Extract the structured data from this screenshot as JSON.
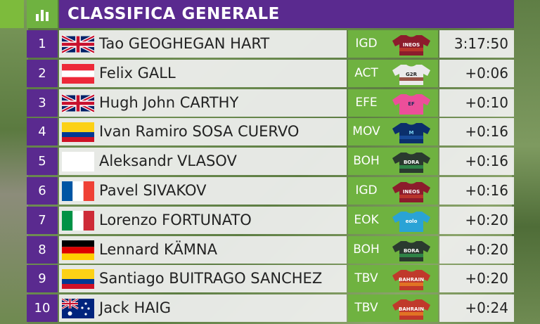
{
  "header": {
    "title": "CLASSIFICA GENERALE",
    "icon": "bar-chart-icon"
  },
  "colors": {
    "purple": "#5a2a8f",
    "green": "#6fb240"
  },
  "rows": [
    {
      "pos": "1",
      "name": "Tao GEOGHEGAN HART",
      "team": "IGD",
      "time": "3:17:50",
      "flag": "gb",
      "jersey": "ineos"
    },
    {
      "pos": "2",
      "name": "Felix GALL",
      "team": "ACT",
      "time": "+0:06",
      "flag": "at",
      "jersey": "ag2r"
    },
    {
      "pos": "3",
      "name": "Hugh John CARTHY",
      "team": "EFE",
      "time": "+0:10",
      "flag": "gb",
      "jersey": "ef"
    },
    {
      "pos": "4",
      "name": "Ivan Ramiro SOSA CUERVO",
      "team": "MOV",
      "time": "+0:16",
      "flag": "co",
      "jersey": "movistar"
    },
    {
      "pos": "5",
      "name": "Aleksandr VLASOV",
      "team": "BOH",
      "time": "+0:16",
      "flag": "blank",
      "jersey": "bora"
    },
    {
      "pos": "6",
      "name": "Pavel SIVAKOV",
      "team": "IGD",
      "time": "+0:16",
      "flag": "fr",
      "jersey": "ineos"
    },
    {
      "pos": "7",
      "name": "Lorenzo FORTUNATO",
      "team": "EOK",
      "time": "+0:20",
      "flag": "it",
      "jersey": "eolo"
    },
    {
      "pos": "8",
      "name": "Lennard KÄMNA",
      "team": "BOH",
      "time": "+0:20",
      "flag": "de",
      "jersey": "bora"
    },
    {
      "pos": "9",
      "name": "Santiago BUITRAGO SANCHEZ",
      "team": "TBV",
      "time": "+0:20",
      "flag": "co",
      "jersey": "bahrain"
    },
    {
      "pos": "10",
      "name": "Jack HAIG",
      "team": "TBV",
      "time": "+0:24",
      "flag": "au",
      "jersey": "bahrain"
    }
  ],
  "jersey_text": {
    "ineos": "INEOS",
    "bora": "BORA",
    "movistar": "M",
    "ef": "EF",
    "eolo": "eolo",
    "bahrain": "BAHRAIN",
    "ag2r": "G2R"
  }
}
